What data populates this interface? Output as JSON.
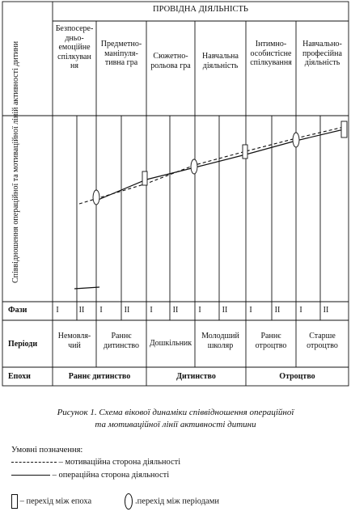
{
  "header": {
    "title": "ПРОВІДНА ДІЯЛЬНІСТЬ"
  },
  "activities": [
    "Безпосере-\nдньо-\nемоційне\nспілкуван\nня",
    "Предметно-\nманіпуля-\nтивна гра",
    "Сюжетно-\nрольова гра",
    "Навчальна\nдіяльність",
    "Інтимно-\nособистісне\nспілкування",
    "Навчально-\nпрофесійна\nдіяльність"
  ],
  "axis_label": "Співвідношення операційної та\nмотиваційної ліній активності дитини",
  "phases": {
    "label": "Фази",
    "values": [
      "I",
      "II",
      "I",
      "II",
      "I",
      "II",
      "I",
      "II",
      "I",
      "II",
      "I",
      "II"
    ]
  },
  "periods": {
    "label": "Періоди",
    "values": [
      "Немовля-\nчий",
      "Раннє\nдитинство",
      "Дошкільник",
      "Молодший\nшколяр",
      "Раннє\nотроцтво",
      "Старше\nотроцтво"
    ]
  },
  "epochs": {
    "label": "Епохи",
    "values": [
      "Раннє дитинство",
      "Дитинство",
      "Отроцтво"
    ]
  },
  "caption": "Рисунок 1. Схема вікової динаміки співвідношення операційної\nта мотиваційної лінії активності дитини",
  "legend": {
    "title": "Умовні позначення:",
    "motivational": "– мотиваційна сторона діяльності",
    "operational": "– операційна сторона діяльності",
    "epoch_transition": "– перехід між епоха",
    "period_transition": ".перехід між періодами"
  }
}
